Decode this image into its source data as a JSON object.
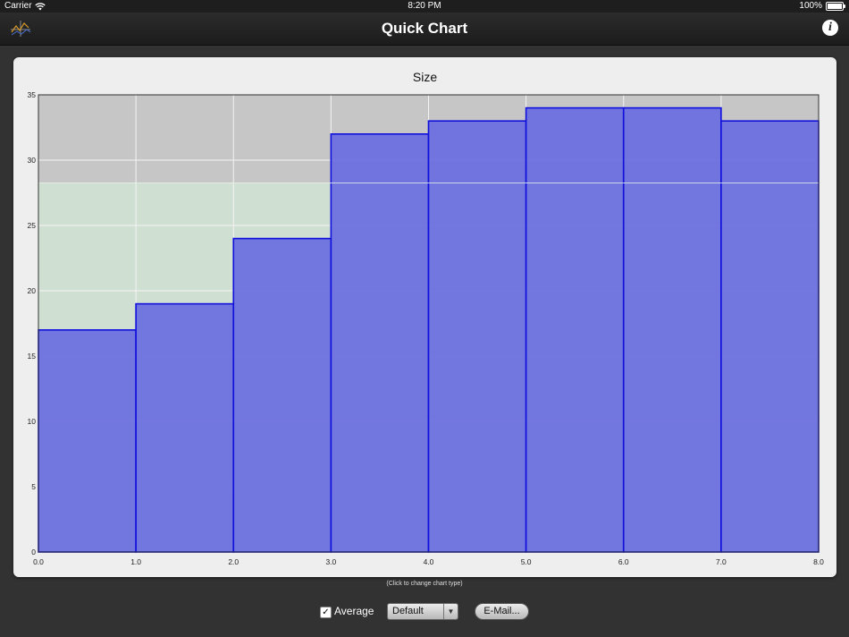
{
  "status_bar": {
    "carrier": "Carrier",
    "time": "8:20 PM",
    "battery": "100%",
    "battery_level": 1.0,
    "icons": [
      "wifi-icon",
      "battery-icon"
    ]
  },
  "nav": {
    "title": "Quick Chart",
    "info_label": "i",
    "icons": [
      "chart-logo-icon",
      "info-icon"
    ]
  },
  "chart_data": {
    "type": "bar",
    "title": "Size",
    "xlabel": "",
    "ylabel": "",
    "x_ticks": [
      "0.0",
      "1.0",
      "2.0",
      "3.0",
      "4.0",
      "5.0",
      "6.0",
      "7.0",
      "8.0"
    ],
    "y_ticks": [
      "0",
      "5",
      "10",
      "15",
      "20",
      "25",
      "30",
      "35"
    ],
    "bins": [
      {
        "from": 0,
        "to": 1,
        "value": 17
      },
      {
        "from": 1,
        "to": 2,
        "value": 19
      },
      {
        "from": 2,
        "to": 3,
        "value": 24
      },
      {
        "from": 3,
        "to": 4,
        "value": 32
      },
      {
        "from": 4,
        "to": 5,
        "value": 33
      },
      {
        "from": 5,
        "to": 6,
        "value": 34
      },
      {
        "from": 6,
        "to": 7,
        "value": 34
      },
      {
        "from": 7,
        "to": 8,
        "value": 33
      }
    ],
    "average": 28.25,
    "xlim": [
      0,
      8
    ],
    "ylim": [
      0,
      35
    ],
    "grid": true,
    "colors": {
      "bar_fill": "#6b6ee0",
      "bar_stroke": "#1010dd",
      "plot_background": "#c6c6c6",
      "average_fill": "#cfdfd2",
      "grid": "#f4f4f4"
    }
  },
  "hint": "(Click to change chart type)",
  "controls": {
    "average_checked": true,
    "check_mark": "✓",
    "average_label": "Average",
    "style_selected": "Default",
    "dropdown_arrow": "▼",
    "email_label": "E-Mail..."
  }
}
